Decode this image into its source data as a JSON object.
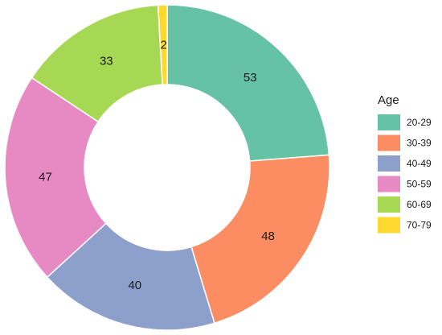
{
  "chart_data": {
    "type": "pie",
    "variant": "donut",
    "legend_title": "Age",
    "legend_position": "right",
    "categories": [
      "20-29",
      "30-39",
      "40-49",
      "50-59",
      "60-69",
      "70-79"
    ],
    "values": [
      53,
      48,
      40,
      47,
      33,
      2
    ],
    "colors": [
      "#66c2a5",
      "#fc8d62",
      "#8da0cb",
      "#e78ac3",
      "#a6d854",
      "#ffd92f"
    ]
  }
}
